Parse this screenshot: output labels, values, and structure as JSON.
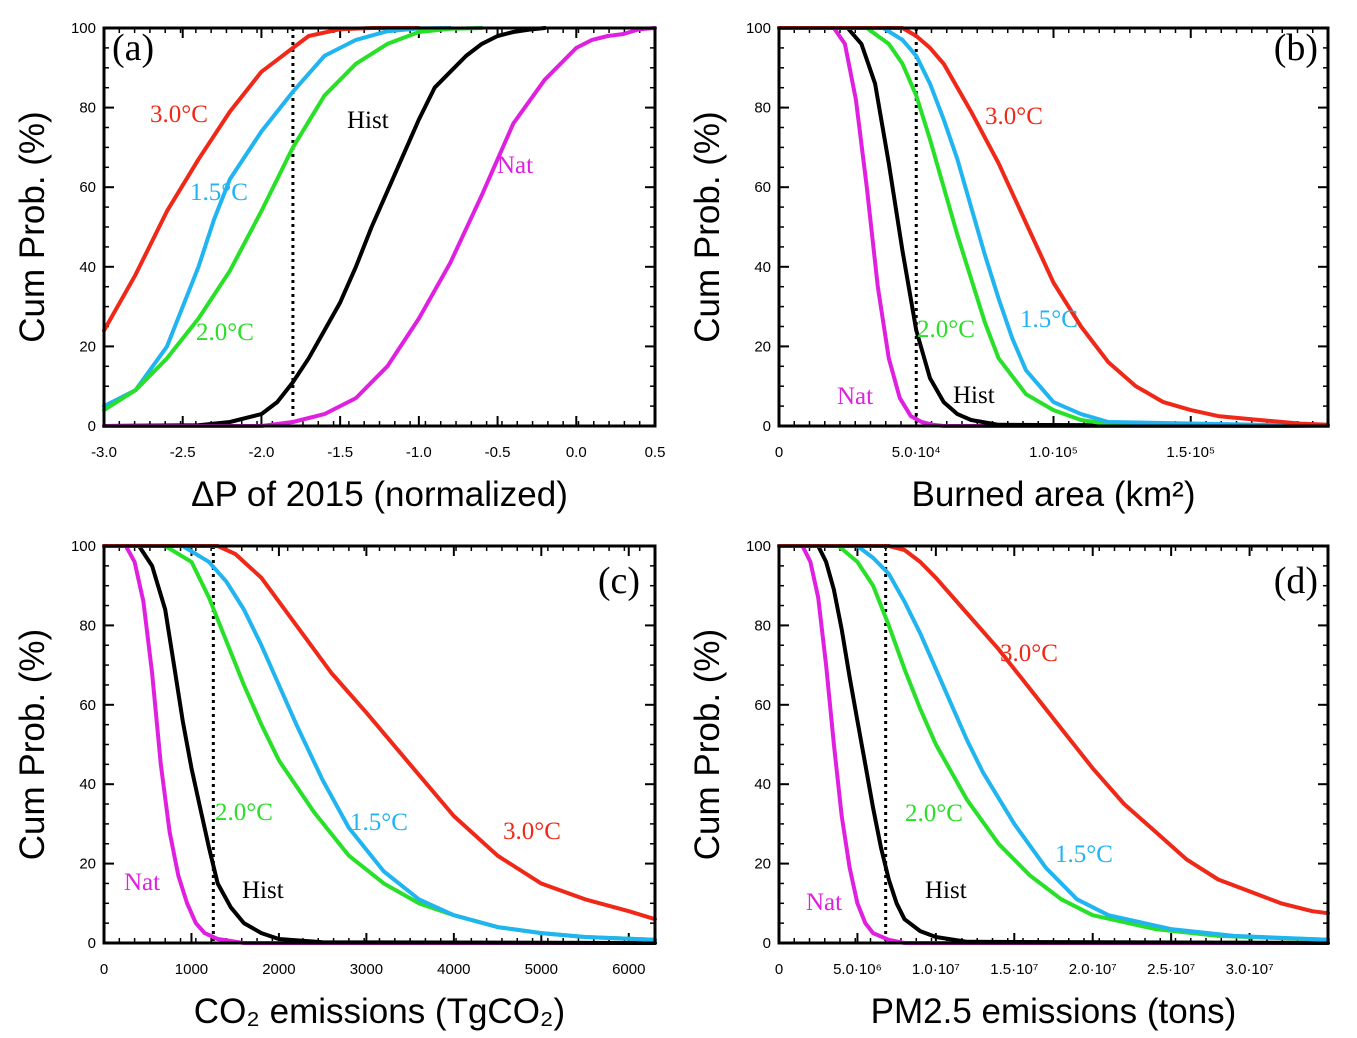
{
  "colors": {
    "hist": "#000000",
    "nat": "#e020e0",
    "c15": "#20b4f0",
    "c20": "#28e028",
    "c30": "#f02818"
  },
  "chart_data": [
    {
      "type": "line",
      "panel_label": "(a)",
      "xlabel": "ΔP of 2015 (normalized)",
      "ylabel": "Cum Prob. (%)",
      "xlim": [
        -3.0,
        0.5
      ],
      "ylim": [
        0,
        100
      ],
      "xticks": [
        -3.0,
        -2.5,
        -2.0,
        -1.5,
        -1.0,
        -0.5,
        0.0,
        0.5
      ],
      "xtick_labels": [
        "-3.0",
        "-2.5",
        "-2.0",
        "-1.5",
        "-1.0",
        "-0.5",
        "0.0",
        "0.5"
      ],
      "yticks": [
        0,
        20,
        40,
        60,
        80,
        100
      ],
      "ytick_labels": [
        "0",
        "20",
        "40",
        "60",
        "80",
        "100"
      ],
      "vline": -1.8,
      "series": [
        {
          "key": "c30",
          "label": "3.0°C",
          "x": [
            -3.0,
            -2.8,
            -2.6,
            -2.4,
            -2.2,
            -2.0,
            -1.9,
            -1.8,
            -1.7,
            -1.5,
            -1.3,
            -1.0
          ],
          "y": [
            24,
            38,
            54,
            67,
            79,
            89,
            92,
            95,
            98,
            99.7,
            100,
            100
          ]
        },
        {
          "key": "c15",
          "label": "1.5°C",
          "x": [
            -3.0,
            -2.8,
            -2.6,
            -2.4,
            -2.3,
            -2.2,
            -2.0,
            -1.8,
            -1.6,
            -1.4,
            -1.2,
            -1.0,
            -0.8
          ],
          "y": [
            5,
            9,
            20,
            40,
            52,
            62,
            74,
            84,
            93,
            97,
            99.2,
            99.9,
            100
          ]
        },
        {
          "key": "c20",
          "label": "2.0°C",
          "x": [
            -3.0,
            -2.8,
            -2.6,
            -2.4,
            -2.2,
            -2.0,
            -1.8,
            -1.6,
            -1.4,
            -1.2,
            -1.0,
            -0.8,
            -0.6
          ],
          "y": [
            4,
            9,
            17,
            27,
            39,
            54,
            70,
            83,
            91,
            96,
            99,
            99.8,
            100
          ]
        },
        {
          "key": "hist",
          "label": "Hist",
          "x": [
            -3.0,
            -2.4,
            -2.2,
            -2.0,
            -1.9,
            -1.8,
            -1.7,
            -1.6,
            -1.5,
            -1.4,
            -1.3,
            -1.2,
            -1.1,
            -1.0,
            -0.9,
            -0.8,
            -0.7,
            -0.6,
            -0.5,
            -0.4,
            -0.3,
            -0.2
          ],
          "y": [
            0,
            0.2,
            1,
            3,
            6,
            11,
            17,
            24,
            31,
            40,
            50,
            59,
            68,
            77,
            85,
            89,
            93,
            96,
            98,
            99,
            99.6,
            100
          ]
        },
        {
          "key": "nat",
          "label": "Nat",
          "x": [
            -3.0,
            -2.0,
            -1.8,
            -1.6,
            -1.4,
            -1.2,
            -1.0,
            -0.8,
            -0.6,
            -0.4,
            -0.2,
            0.0,
            0.1,
            0.2,
            0.3,
            0.4,
            0.5
          ],
          "y": [
            0,
            0,
            1,
            3,
            7,
            15,
            27,
            41,
            58,
            76,
            87,
            95,
            97,
            98,
            98.5,
            99.7,
            100
          ]
        }
      ]
    },
    {
      "type": "line",
      "panel_label": "(b)",
      "xlabel": "Burned area (km²)",
      "ylabel": "Cum Prob. (%)",
      "xlim": [
        0,
        200000
      ],
      "ylim": [
        0,
        100
      ],
      "xticks": [
        0,
        50000,
        100000,
        150000
      ],
      "xtick_labels": [
        "0",
        "5.0·10⁴",
        "1.0·10⁵",
        "1.5·10⁵"
      ],
      "yticks": [
        0,
        20,
        40,
        60,
        80,
        100
      ],
      "ytick_labels": [
        "0",
        "20",
        "40",
        "60",
        "80",
        "100"
      ],
      "vline": 50000,
      "series": [
        {
          "key": "nat",
          "label": "Nat",
          "x": [
            0,
            20000,
            24000,
            28000,
            32000,
            36000,
            40000,
            44000,
            48000,
            52000,
            56000,
            60000,
            200000
          ],
          "y": [
            100,
            100,
            96,
            82,
            60,
            35,
            17,
            7,
            2.5,
            1,
            0.3,
            0,
            0
          ]
        },
        {
          "key": "hist",
          "label": "Hist",
          "x": [
            0,
            25000,
            30000,
            35000,
            40000,
            45000,
            50000,
            55000,
            60000,
            65000,
            70000,
            80000,
            200000
          ],
          "y": [
            100,
            100,
            96,
            86,
            66,
            44,
            24,
            12,
            6,
            3,
            1.5,
            0.3,
            0
          ]
        },
        {
          "key": "c20",
          "label": "2.0°C",
          "x": [
            0,
            32000,
            40000,
            45000,
            50000,
            55000,
            60000,
            65000,
            70000,
            75000,
            80000,
            90000,
            100000,
            110000,
            120000,
            200000
          ],
          "y": [
            100,
            100,
            96,
            91,
            83,
            72,
            60,
            48,
            37,
            26,
            17,
            8,
            4,
            1.5,
            0.5,
            0
          ]
        },
        {
          "key": "c15",
          "label": "1.5°C",
          "x": [
            0,
            38000,
            45000,
            50000,
            55000,
            60000,
            65000,
            70000,
            75000,
            80000,
            85000,
            90000,
            100000,
            110000,
            120000,
            200000
          ],
          "y": [
            100,
            100,
            97,
            93,
            86,
            77,
            67,
            55,
            43,
            32,
            22,
            14,
            6,
            3,
            1,
            0
          ]
        },
        {
          "key": "c30",
          "label": "3.0°C",
          "x": [
            0,
            45000,
            50000,
            55000,
            60000,
            70000,
            80000,
            90000,
            100000,
            110000,
            120000,
            130000,
            140000,
            150000,
            160000,
            175000,
            190000,
            200000
          ],
          "y": [
            100,
            100,
            98,
            95,
            91,
            79,
            66,
            51,
            36,
            25,
            16,
            10,
            6,
            4,
            2.5,
            1.5,
            0.6,
            0.3
          ]
        }
      ]
    },
    {
      "type": "line",
      "panel_label": "(c)",
      "xlabel": "CO₂ emissions (TgCO₂)",
      "ylabel": "Cum Prob. (%)",
      "xlim": [
        0,
        6300
      ],
      "ylim": [
        0,
        100
      ],
      "xticks": [
        0,
        1000,
        2000,
        3000,
        4000,
        5000,
        6000
      ],
      "xtick_labels": [
        "0",
        "1000",
        "2000",
        "3000",
        "4000",
        "5000",
        "6000"
      ],
      "yticks": [
        0,
        20,
        40,
        60,
        80,
        100
      ],
      "ytick_labels": [
        "0",
        "20",
        "40",
        "60",
        "80",
        "100"
      ],
      "vline": 1250,
      "series": [
        {
          "key": "nat",
          "label": "Nat",
          "x": [
            0,
            250,
            350,
            450,
            550,
            650,
            750,
            850,
            950,
            1050,
            1150,
            1300,
            1600,
            6300
          ],
          "y": [
            100,
            100,
            96,
            86,
            68,
            45,
            28,
            17,
            10,
            5,
            2.5,
            1,
            0,
            0
          ]
        },
        {
          "key": "hist",
          "label": "Hist",
          "x": [
            0,
            400,
            550,
            700,
            800,
            900,
            1000,
            1100,
            1200,
            1300,
            1450,
            1600,
            1800,
            2000,
            2500,
            6300
          ],
          "y": [
            100,
            100,
            95,
            84,
            70,
            56,
            44,
            34,
            24,
            15,
            9,
            5,
            2.5,
            1,
            0.2,
            0
          ]
        },
        {
          "key": "c20",
          "label": "2.0°C",
          "x": [
            0,
            700,
            1000,
            1200,
            1400,
            1600,
            1800,
            2000,
            2400,
            2800,
            3200,
            3600,
            4000,
            4500,
            5000,
            5500,
            6300
          ],
          "y": [
            100,
            100,
            96,
            87,
            76,
            65,
            55,
            46,
            33,
            22,
            15,
            10,
            7,
            4,
            2.5,
            1.5,
            0.8
          ]
        },
        {
          "key": "c15",
          "label": "1.5°C",
          "x": [
            0,
            900,
            1200,
            1400,
            1600,
            1800,
            2000,
            2200,
            2500,
            2800,
            3200,
            3600,
            4000,
            4500,
            5000,
            5500,
            6300
          ],
          "y": [
            100,
            100,
            96,
            91,
            84,
            75,
            65,
            55,
            41,
            29,
            18,
            11,
            7,
            4,
            2.5,
            1.5,
            0.8
          ]
        },
        {
          "key": "c30",
          "label": "3.0°C",
          "x": [
            0,
            1300,
            1500,
            1800,
            2200,
            2600,
            3000,
            3500,
            4000,
            4500,
            5000,
            5500,
            6000,
            6300
          ],
          "y": [
            100,
            100,
            98,
            92,
            80,
            68,
            58,
            45,
            32,
            22,
            15,
            11,
            8,
            6
          ]
        }
      ]
    },
    {
      "type": "line",
      "panel_label": "(d)",
      "xlabel": "PM2.5 emissions (tons)",
      "ylabel": "Cum Prob. (%)",
      "xlim": [
        0,
        35000000
      ],
      "ylim": [
        0,
        100
      ],
      "xticks": [
        0,
        5000000,
        10000000,
        15000000,
        20000000,
        25000000,
        30000000
      ],
      "xtick_labels": [
        "0",
        "5.0·10⁶",
        "1.0·10⁷",
        "1.5·10⁷",
        "2.0·10⁷",
        "2.5·10⁷",
        "3.0·10⁷"
      ],
      "yticks": [
        0,
        20,
        40,
        60,
        80,
        100
      ],
      "ytick_labels": [
        "0",
        "20",
        "40",
        "60",
        "80",
        "100"
      ],
      "vline": 6800000,
      "series": [
        {
          "key": "nat",
          "label": "Nat",
          "x": [
            0,
            1500000,
            2000000,
            2500000,
            3000000,
            3500000,
            4000000,
            4500000,
            5000000,
            5500000,
            6000000,
            7000000,
            8000000,
            35000000
          ],
          "y": [
            100,
            100,
            96,
            87,
            70,
            50,
            32,
            19,
            10,
            5,
            2.5,
            0.8,
            0,
            0
          ]
        },
        {
          "key": "hist",
          "label": "Hist",
          "x": [
            0,
            2500000,
            3000000,
            3500000,
            4000000,
            4500000,
            5000000,
            5500000,
            6000000,
            6500000,
            7000000,
            7500000,
            8000000,
            9000000,
            10000000,
            12000000,
            35000000
          ],
          "y": [
            100,
            100,
            96,
            89,
            79,
            67,
            56,
            45,
            34,
            24,
            16,
            10,
            6,
            3,
            1.5,
            0.3,
            0
          ]
        },
        {
          "key": "c20",
          "label": "2.0°C",
          "x": [
            0,
            3800000,
            5000000,
            6000000,
            7000000,
            8000000,
            9000000,
            10000000,
            11000000,
            12000000,
            14000000,
            16000000,
            18000000,
            20000000,
            24000000,
            28000000,
            35000000
          ],
          "y": [
            100,
            100,
            96,
            90,
            80,
            69,
            59,
            50,
            43,
            36,
            25,
            17,
            11,
            7,
            3.5,
            1.8,
            0.8
          ]
        },
        {
          "key": "c15",
          "label": "1.5°C",
          "x": [
            0,
            5000000,
            6000000,
            7000000,
            8000000,
            9000000,
            10000000,
            11000000,
            12000000,
            13000000,
            15000000,
            17000000,
            19000000,
            21000000,
            25000000,
            29000000,
            35000000
          ],
          "y": [
            100,
            100,
            97,
            93,
            86,
            78,
            69,
            60,
            51,
            43,
            30,
            19,
            11,
            7,
            3.5,
            1.8,
            0.8
          ]
        },
        {
          "key": "c30",
          "label": "3.0°C",
          "x": [
            0,
            7000000,
            8000000,
            9000000,
            10000000,
            12000000,
            14000000,
            16000000,
            18000000,
            20000000,
            22000000,
            24000000,
            26000000,
            28000000,
            30000000,
            32000000,
            34000000,
            35000000
          ],
          "y": [
            100,
            100,
            99,
            96,
            92,
            83,
            74,
            64,
            54,
            44,
            35,
            28,
            21,
            16,
            13,
            10,
            8,
            7.5
          ]
        }
      ]
    }
  ]
}
